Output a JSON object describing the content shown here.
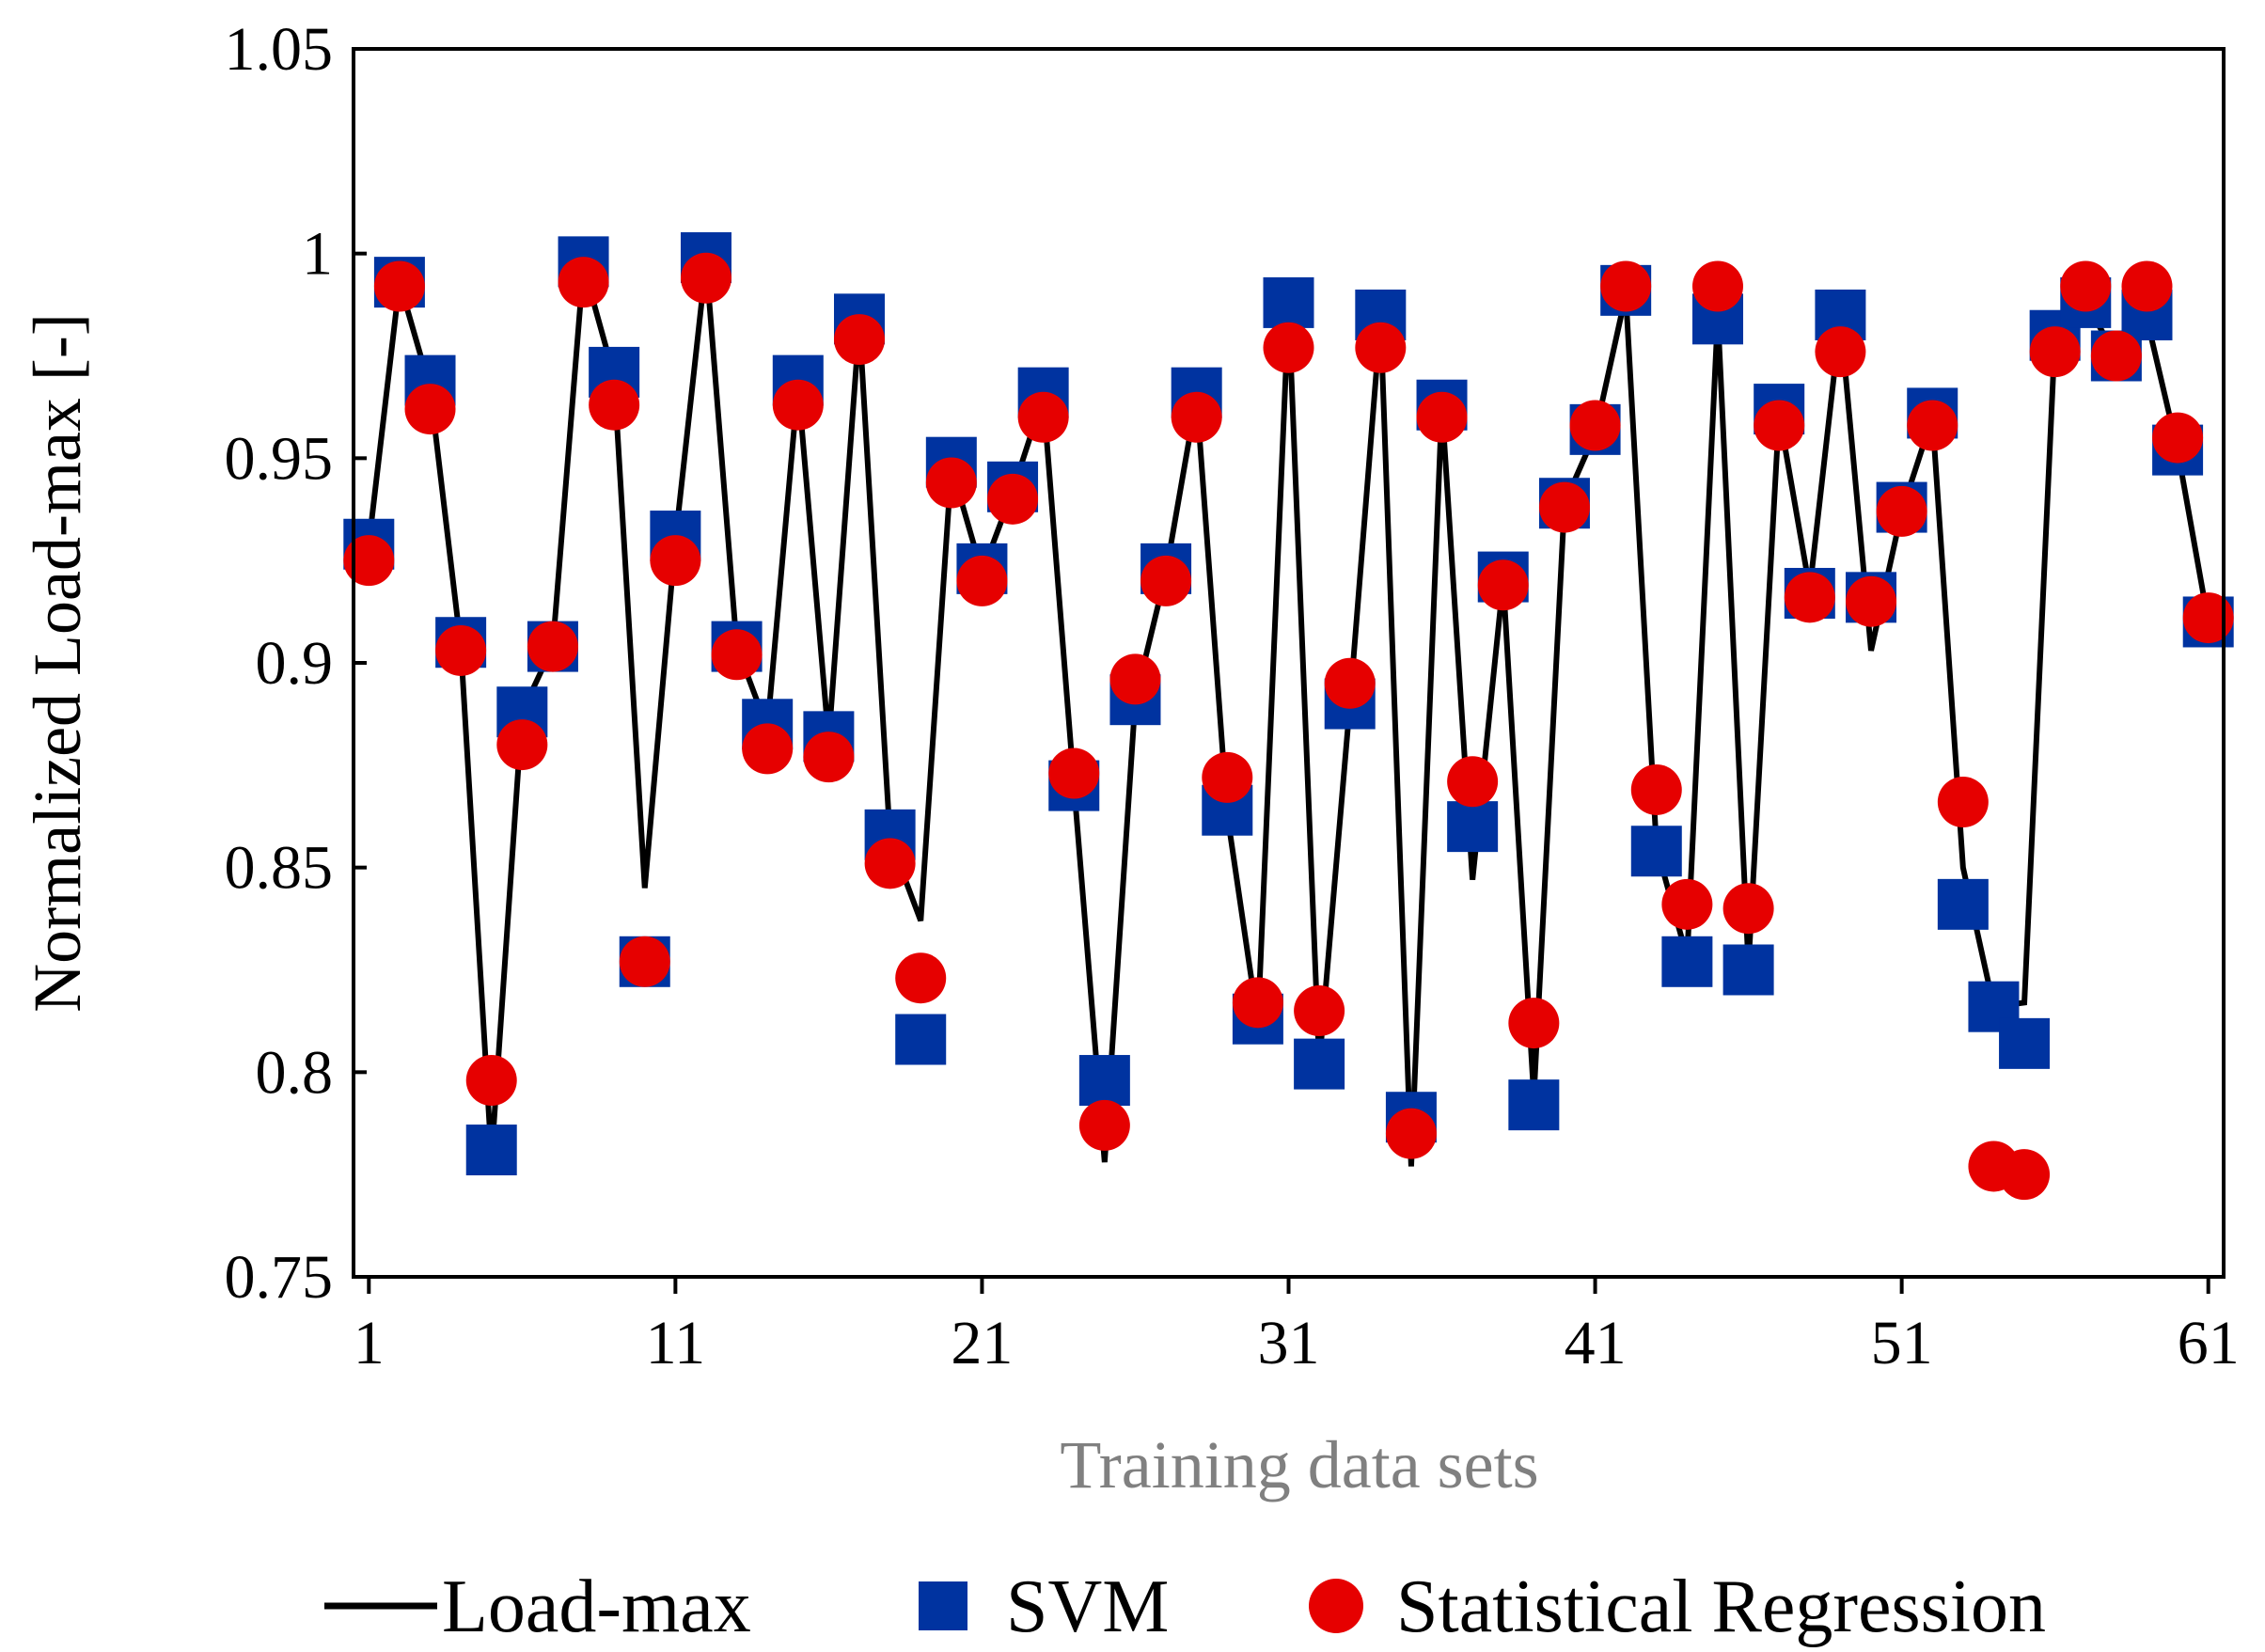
{
  "chart_data": {
    "type": "line",
    "title": "",
    "xlabel": "Training data sets",
    "ylabel": "Normalized Load-max [-]",
    "xlim": [
      0.5,
      61.5
    ],
    "ylim": [
      0.75,
      1.05
    ],
    "xticks": [
      1,
      11,
      21,
      31,
      41,
      51,
      61
    ],
    "yticks": [
      0.75,
      0.8,
      0.85,
      0.9,
      0.95,
      1,
      1.05
    ],
    "ytick_labels": [
      "0.75",
      "0.8",
      "0.85",
      "0.9",
      "0.95",
      "1",
      "1.05"
    ],
    "x": [
      1,
      2,
      3,
      4,
      5,
      6,
      7,
      8,
      9,
      10,
      11,
      12,
      13,
      14,
      15,
      16,
      17,
      18,
      19,
      20,
      21,
      22,
      23,
      24,
      25,
      26,
      27,
      28,
      29,
      30,
      31,
      32,
      33,
      34,
      35,
      36,
      37,
      38,
      39,
      40,
      41,
      42,
      43,
      44,
      45,
      46,
      47,
      48,
      49,
      50,
      51,
      52,
      53,
      54,
      55,
      56,
      57,
      58,
      59,
      60,
      61
    ],
    "series": [
      {
        "name": "Load-max",
        "style": "line",
        "color": "#000000",
        "values": [
          0.929,
          0.993,
          0.967,
          0.904,
          0.779,
          0.888,
          0.904,
          0.997,
          0.97,
          0.845,
          0.93,
          0.998,
          0.904,
          0.884,
          0.968,
          0.881,
          0.983,
          0.857,
          0.837,
          0.948,
          0.922,
          0.942,
          0.965,
          0.87,
          0.778,
          0.891,
          0.922,
          0.965,
          0.863,
          0.812,
          0.987,
          0.802,
          0.89,
          0.984,
          0.777,
          0.963,
          0.847,
          0.92,
          0.794,
          0.939,
          0.956,
          0.99,
          0.855,
          0.828,
          0.985,
          0.826,
          0.961,
          0.918,
          0.984,
          0.903,
          0.937,
          0.96,
          0.85,
          0.816,
          0.817,
          0.98,
          0.988,
          0.975,
          0.984,
          0.952,
          0.91
        ]
      },
      {
        "name": "SVM",
        "style": "square",
        "color": "#0033a0",
        "values": [
          0.929,
          0.993,
          0.969,
          0.905,
          0.781,
          0.888,
          0.904,
          0.998,
          0.971,
          0.827,
          0.931,
          0.999,
          0.904,
          0.885,
          0.969,
          0.882,
          0.984,
          0.858,
          0.808,
          0.949,
          0.923,
          0.943,
          0.966,
          0.87,
          0.798,
          0.891,
          0.923,
          0.966,
          0.864,
          0.813,
          0.988,
          0.802,
          0.89,
          0.985,
          0.789,
          0.963,
          0.86,
          0.921,
          0.792,
          0.939,
          0.957,
          0.991,
          0.854,
          0.827,
          0.984,
          0.825,
          0.962,
          0.917,
          0.985,
          0.916,
          0.938,
          0.961,
          0.841,
          0.816,
          0.807,
          0.98,
          0.988,
          0.975,
          0.985,
          0.952,
          0.91
        ]
      },
      {
        "name": "Statistical Regression",
        "style": "circle",
        "color": "#e60000",
        "values": [
          0.925,
          0.992,
          0.962,
          0.903,
          0.798,
          0.88,
          0.904,
          0.993,
          0.963,
          0.827,
          0.925,
          0.994,
          0.902,
          0.879,
          0.963,
          0.877,
          0.979,
          0.851,
          0.823,
          0.944,
          0.92,
          0.94,
          0.96,
          0.873,
          0.787,
          0.896,
          0.92,
          0.96,
          0.872,
          0.817,
          0.977,
          0.815,
          0.895,
          0.977,
          0.785,
          0.96,
          0.871,
          0.919,
          0.812,
          0.938,
          0.958,
          0.992,
          0.869,
          0.841,
          0.992,
          0.84,
          0.958,
          0.916,
          0.976,
          0.915,
          0.937,
          0.958,
          0.866,
          0.777,
          0.775,
          0.976,
          0.992,
          0.975,
          0.992,
          0.955,
          0.911
        ]
      }
    ],
    "legend": {
      "position": "bottom",
      "entries": [
        "Load-max",
        "SVM",
        "Statistical Regression"
      ]
    }
  }
}
